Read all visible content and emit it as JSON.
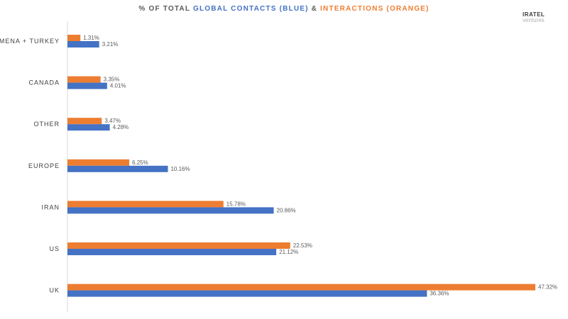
{
  "title": {
    "prefix": "% OF TOTAL ",
    "blue_part": "GLOBAL CONTACTS (BLUE)",
    "joiner": " & ",
    "orange_part": "INTERACTIONS (ORANGE)"
  },
  "logo": {
    "line1": "IRATEL",
    "line2": "ventures"
  },
  "colors": {
    "contacts": "#4472c4",
    "interactions": "#ed7d31",
    "axis": "#d9d9d9"
  },
  "chart_data": {
    "type": "bar",
    "orientation": "horizontal",
    "title": "% OF TOTAL GLOBAL CONTACTS (BLUE) & INTERACTIONS (ORANGE)",
    "categories": [
      "MENA + TURKEY",
      "CANADA",
      "OTHER",
      "EUROPE",
      "IRAN",
      "US",
      "UK"
    ],
    "series": [
      {
        "key": "interactions",
        "values": [
          1.31,
          3.35,
          3.47,
          6.25,
          15.78,
          22.53,
          47.32
        ],
        "labels": [
          "1.31%",
          "3.35%",
          "3.47%",
          "6.25%",
          "15.78%",
          "22.53%",
          "47.32%"
        ]
      },
      {
        "key": "contacts",
        "values": [
          3.21,
          4.01,
          4.28,
          10.16,
          20.86,
          21.12,
          36.36
        ],
        "labels": [
          "3.21%",
          "4.01%",
          "4.28%",
          "10.16%",
          "20.86%",
          "21.12%",
          "36.36%"
        ]
      }
    ],
    "xlim": [
      0,
      47.32
    ],
    "grid": false,
    "legend": "none"
  }
}
